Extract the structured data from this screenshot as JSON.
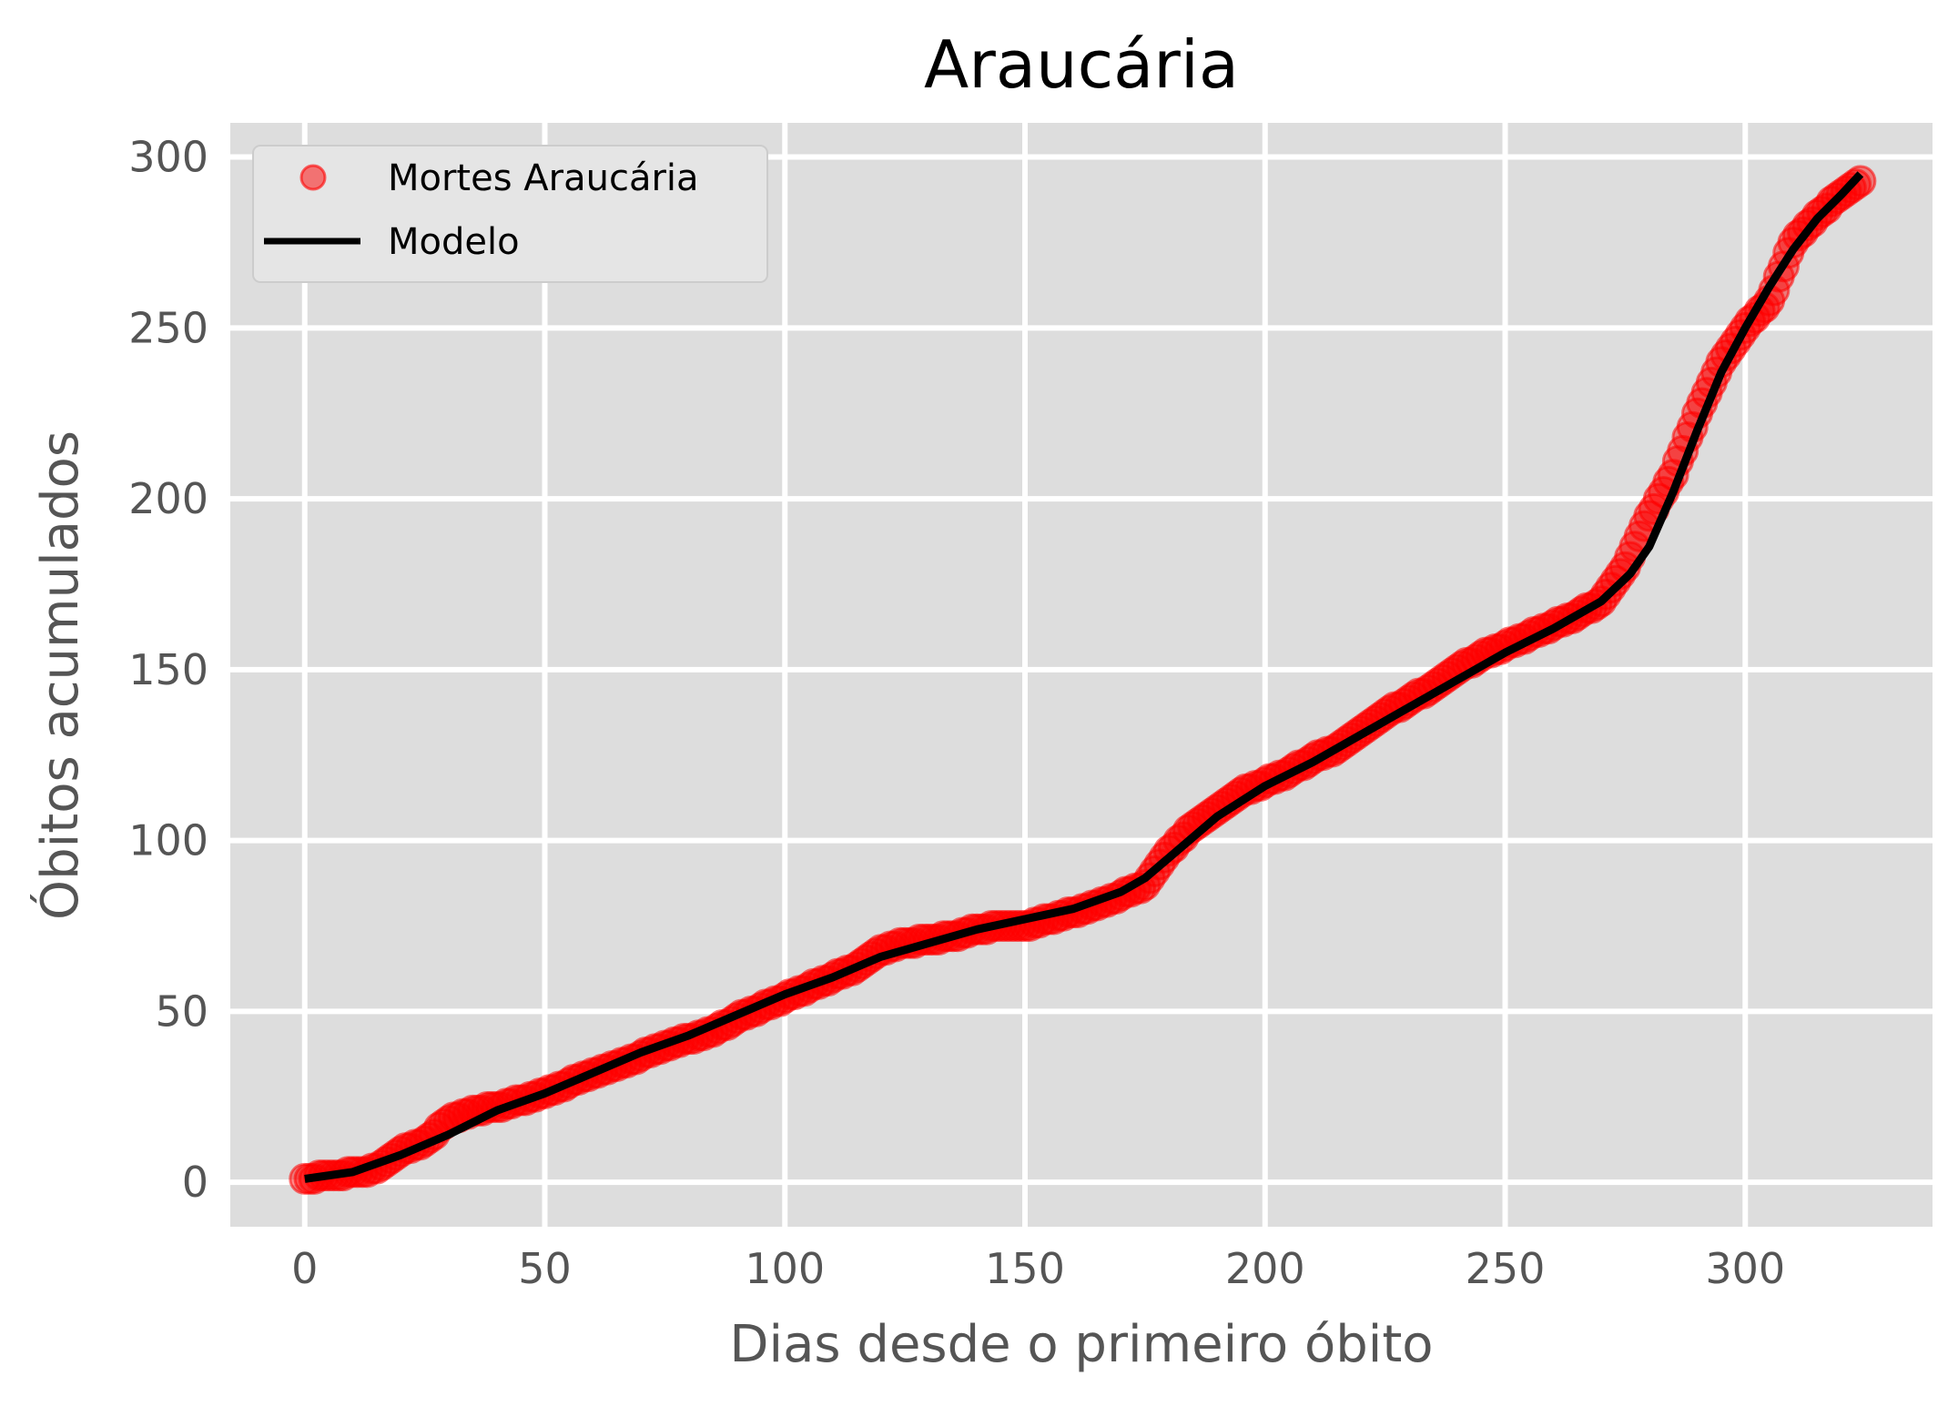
{
  "chart_data": {
    "type": "scatter",
    "title": "Araucária",
    "xlabel": "Dias desde o primeiro óbito",
    "ylabel": "Óbitos acumulados",
    "xlim": [
      -15.5,
      339
    ],
    "ylim": [
      -13,
      310
    ],
    "x_ticks": [
      0,
      50,
      100,
      150,
      200,
      250,
      300
    ],
    "y_ticks": [
      0,
      50,
      100,
      150,
      200,
      250,
      300
    ],
    "grid": true,
    "legend_position": "top-left",
    "colors": {
      "plot_background": "#dddddd",
      "grid": "#ffffff",
      "points": "#ff0000",
      "model": "#000000"
    },
    "series": [
      {
        "name": "Mortes Araucária",
        "kind": "scatter",
        "anchor_points": [
          [
            0,
            1
          ],
          [
            5,
            2
          ],
          [
            12,
            3
          ],
          [
            15,
            4
          ],
          [
            20,
            9
          ],
          [
            25,
            12
          ],
          [
            30,
            18
          ],
          [
            35,
            21
          ],
          [
            40,
            22
          ],
          [
            45,
            24
          ],
          [
            50,
            26
          ],
          [
            55,
            29
          ],
          [
            60,
            32
          ],
          [
            65,
            34
          ],
          [
            70,
            37
          ],
          [
            75,
            40
          ],
          [
            80,
            42
          ],
          [
            85,
            44
          ],
          [
            90,
            48
          ],
          [
            95,
            51
          ],
          [
            100,
            54
          ],
          [
            105,
            57
          ],
          [
            110,
            60
          ],
          [
            115,
            63
          ],
          [
            120,
            68
          ],
          [
            125,
            70
          ],
          [
            130,
            71
          ],
          [
            135,
            72
          ],
          [
            140,
            74
          ],
          [
            145,
            75
          ],
          [
            150,
            75
          ],
          [
            155,
            77
          ],
          [
            160,
            79
          ],
          [
            165,
            81
          ],
          [
            170,
            84
          ],
          [
            175,
            87
          ],
          [
            180,
            97
          ],
          [
            185,
            104
          ],
          [
            190,
            109
          ],
          [
            195,
            114
          ],
          [
            200,
            117
          ],
          [
            205,
            120
          ],
          [
            210,
            124
          ],
          [
            215,
            127
          ],
          [
            220,
            132
          ],
          [
            225,
            137
          ],
          [
            230,
            141
          ],
          [
            235,
            145
          ],
          [
            240,
            150
          ],
          [
            245,
            154
          ],
          [
            250,
            157
          ],
          [
            255,
            160
          ],
          [
            260,
            163
          ],
          [
            265,
            166
          ],
          [
            270,
            170
          ],
          [
            275,
            180
          ],
          [
            280,
            195
          ],
          [
            285,
            207
          ],
          [
            290,
            225
          ],
          [
            295,
            240
          ],
          [
            300,
            250
          ],
          [
            305,
            258
          ],
          [
            310,
            275
          ],
          [
            315,
            283
          ],
          [
            320,
            289
          ],
          [
            324,
            293
          ]
        ]
      },
      {
        "name": "Modelo",
        "kind": "line",
        "points": [
          [
            0,
            1
          ],
          [
            10,
            3
          ],
          [
            20,
            8
          ],
          [
            30,
            14
          ],
          [
            40,
            21
          ],
          [
            50,
            26
          ],
          [
            60,
            32
          ],
          [
            70,
            38
          ],
          [
            80,
            43
          ],
          [
            90,
            49
          ],
          [
            100,
            55
          ],
          [
            110,
            60
          ],
          [
            120,
            66
          ],
          [
            130,
            70
          ],
          [
            140,
            74
          ],
          [
            150,
            77
          ],
          [
            160,
            80
          ],
          [
            170,
            85
          ],
          [
            175,
            89
          ],
          [
            180,
            95
          ],
          [
            190,
            107
          ],
          [
            200,
            116
          ],
          [
            210,
            123
          ],
          [
            220,
            131
          ],
          [
            230,
            139
          ],
          [
            240,
            147
          ],
          [
            250,
            155
          ],
          [
            260,
            162
          ],
          [
            270,
            170
          ],
          [
            276,
            178
          ],
          [
            280,
            186
          ],
          [
            285,
            202
          ],
          [
            290,
            220
          ],
          [
            295,
            237
          ],
          [
            300,
            250
          ],
          [
            305,
            262
          ],
          [
            310,
            273
          ],
          [
            315,
            282
          ],
          [
            320,
            289
          ],
          [
            324,
            295
          ]
        ]
      }
    ]
  }
}
